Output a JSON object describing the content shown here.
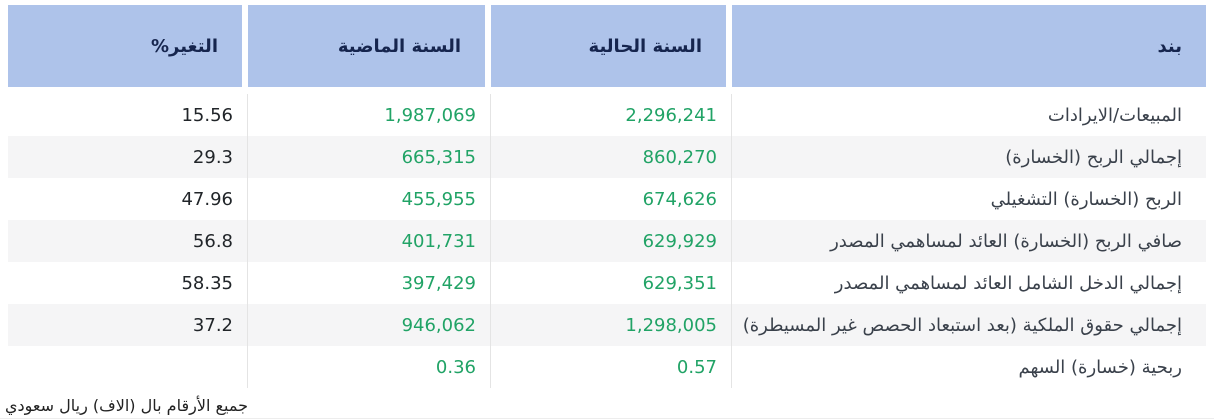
{
  "direction": "rtl",
  "colors": {
    "header_bg": "#aec3ea",
    "header_text": "#16254e",
    "value_green": "#21a366",
    "change_text": "#212529",
    "label_text": "#3a414b",
    "row_alt_bg": "#f5f5f6",
    "separator": "#e4e4e4"
  },
  "table": {
    "headers": {
      "item": "بند",
      "current_year": "السنة الحالية",
      "previous_year": "السنة الماضية",
      "change_percent": "التغير%"
    },
    "rows": [
      {
        "item": "المبيعات/الايرادات",
        "current_year": "2,296,241",
        "previous_year": "1,987,069",
        "change_percent": "15.56"
      },
      {
        "item": "إجمالي الربح (الخسارة)",
        "current_year": "860,270",
        "previous_year": "665,315",
        "change_percent": "29.3"
      },
      {
        "item": "الربح (الخسارة) التشغيلي",
        "current_year": "674,626",
        "previous_year": "455,955",
        "change_percent": "47.96"
      },
      {
        "item": "صافي الربح (الخسارة) العائد لمساهمي المصدر",
        "current_year": "629,929",
        "previous_year": "401,731",
        "change_percent": "56.8"
      },
      {
        "item": "إجمالي الدخل الشامل العائد لمساهمي المصدر",
        "current_year": "629,351",
        "previous_year": "397,429",
        "change_percent": "58.35"
      },
      {
        "item": "إجمالي حقوق الملكية (بعد استبعاد الحصص غير المسيطرة)",
        "current_year": "1,298,005",
        "previous_year": "946,062",
        "change_percent": "37.2"
      },
      {
        "item": "ربحية (خسارة) السهم",
        "current_year": "0.57",
        "previous_year": "0.36",
        "change_percent": ""
      }
    ]
  },
  "footer": {
    "note": "جميع الأرقام بال (الاف) ريال سعودي"
  },
  "chart_data": {
    "type": "table",
    "title": "",
    "columns": [
      "بند",
      "السنة الحالية",
      "السنة الماضية",
      "التغير%"
    ],
    "rows": [
      [
        "المبيعات/الايرادات",
        2296241,
        1987069,
        15.56
      ],
      [
        "إجمالي الربح (الخسارة)",
        860270,
        665315,
        29.3
      ],
      [
        "الربح (الخسارة) التشغيلي",
        674626,
        455955,
        47.96
      ],
      [
        "صافي الربح (الخسارة) العائد لمساهمي المصدر",
        629929,
        401731,
        56.8
      ],
      [
        "إجمالي الدخل الشامل العائد لمساهمي المصدر",
        629351,
        397429,
        58.35
      ],
      [
        "إجمالي حقوق الملكية (بعد استبعاد الحصص غير المسيطرة)",
        1298005,
        946062,
        37.2
      ],
      [
        "ربحية (خسارة) السهم",
        0.57,
        0.36,
        null
      ]
    ],
    "units_note": "جميع الأرقام بال (الاف) ريال سعودي",
    "layout": {
      "direction": "rtl",
      "value_color": "#21a366",
      "header_bg": "#aec3ea"
    }
  }
}
